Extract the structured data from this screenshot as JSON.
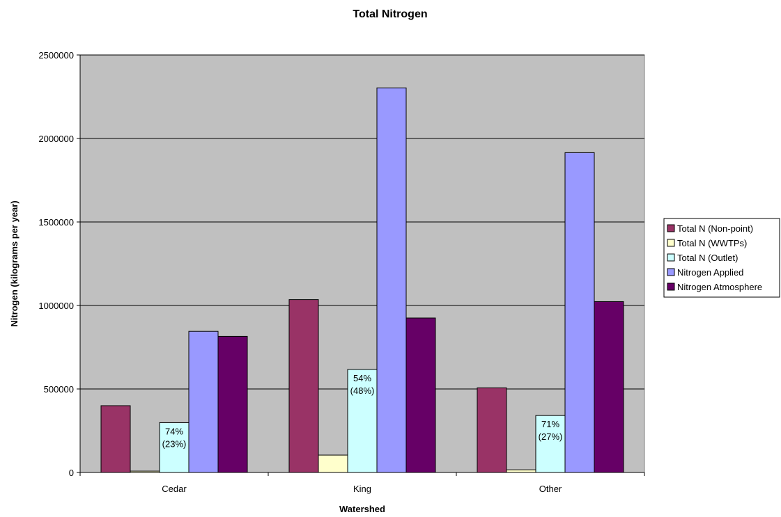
{
  "chart_data": {
    "type": "bar",
    "title": "Total Nitrogen",
    "xlabel": "Watershed",
    "ylabel": "Nitrogen (kilograms per year)",
    "categories": [
      "Cedar",
      "King",
      "Other"
    ],
    "ylim": [
      0,
      2500000
    ],
    "yticks": [
      "0",
      "500000",
      "1000000",
      "1500000",
      "2000000",
      "2500000"
    ],
    "ytick_values": [
      0,
      500000,
      1000000,
      1500000,
      2000000,
      2500000
    ],
    "grid": true,
    "plot_background": "#c0c0c0",
    "legend_position": "right",
    "series": [
      {
        "name": "Total N (Non-point)",
        "color": "#993366",
        "values": [
          400000,
          1035000,
          507000
        ]
      },
      {
        "name": "Total N (WWTPs)",
        "color": "#ffffcc",
        "values": [
          8000,
          104000,
          16000
        ]
      },
      {
        "name": "Total N (Outlet)",
        "color": "#ccffff",
        "values": [
          298000,
          617000,
          341000
        ],
        "labels": [
          [
            "74%",
            "(23%)"
          ],
          [
            "54%",
            "(48%)"
          ],
          [
            "71%",
            "(27%)"
          ]
        ]
      },
      {
        "name": "Nitrogen Applied",
        "color": "#9999ff",
        "values": [
          845000,
          2303000,
          1915000
        ]
      },
      {
        "name": "Nitrogen Atmosphere",
        "color": "#660066",
        "values": [
          815000,
          925000,
          1023000
        ]
      }
    ]
  }
}
